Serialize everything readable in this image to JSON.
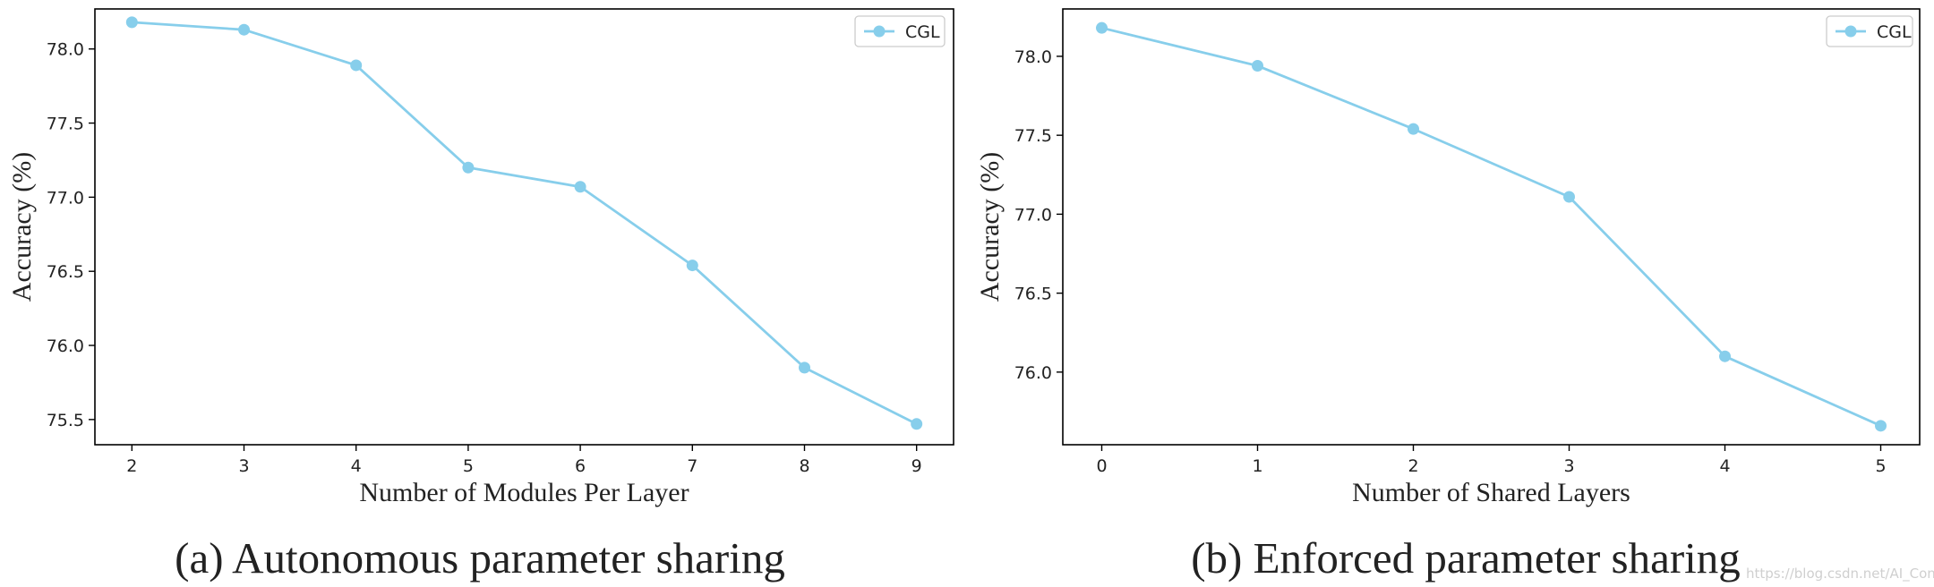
{
  "chart_data": [
    {
      "type": "line",
      "xlabel": "Number of Modules Per Layer",
      "ylabel": "Accuracy (%)",
      "caption": "(a) Autonomous parameter sharing",
      "x": [
        2,
        3,
        4,
        5,
        6,
        7,
        8,
        9
      ],
      "x_tick_labels": [
        "2",
        "3",
        "4",
        "5",
        "6",
        "7",
        "8",
        "9"
      ],
      "y_ticks": [
        75.5,
        76.0,
        76.5,
        77.0,
        77.5,
        78.0
      ],
      "y_tick_labels": [
        "75.5",
        "76.0",
        "76.5",
        "77.0",
        "77.5",
        "78.0"
      ],
      "xlim": [
        1.67,
        9.33
      ],
      "ylim": [
        75.33,
        78.27
      ],
      "legend": "upper right",
      "series": [
        {
          "name": "CGL",
          "color": "#87ceeb",
          "values": [
            78.18,
            78.13,
            77.89,
            77.2,
            77.07,
            76.54,
            75.85,
            75.47
          ]
        }
      ]
    },
    {
      "type": "line",
      "xlabel": "Number of Shared Layers",
      "ylabel": "Accuracy (%)",
      "caption": "(b) Enforced parameter sharing",
      "x": [
        0,
        1,
        2,
        3,
        4,
        5
      ],
      "x_tick_labels": [
        "0",
        "1",
        "2",
        "3",
        "4",
        "5"
      ],
      "y_ticks": [
        76.0,
        76.5,
        77.0,
        77.5,
        78.0
      ],
      "y_tick_labels": [
        "76.0",
        "76.5",
        "77.0",
        "77.5",
        "78.0"
      ],
      "xlim": [
        -0.25,
        5.25
      ],
      "ylim": [
        75.54,
        78.3
      ],
      "legend": "upper right",
      "series": [
        {
          "name": "CGL",
          "color": "#87ceeb",
          "values": [
            78.18,
            77.94,
            77.54,
            77.11,
            76.1,
            75.66
          ]
        }
      ]
    }
  ],
  "watermark": "https://blog.csdn.net/AI_Conf"
}
